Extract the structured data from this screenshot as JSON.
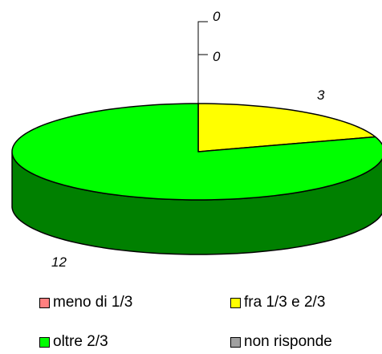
{
  "chart_data": {
    "type": "pie",
    "title": "",
    "three_d": true,
    "slices": [
      {
        "label": "meno di 1/3",
        "value": 0,
        "color": "#ff8080",
        "data_label": "0"
      },
      {
        "label": "fra 1/3 e 2/3",
        "value": 3,
        "color": "#ffff00",
        "data_label": "3"
      },
      {
        "label": "oltre 2/3",
        "value": 12,
        "color": "#00ff00",
        "data_label": "12"
      },
      {
        "label": "non risponde",
        "value": 0,
        "color": "#a0a0a0",
        "data_label": "0"
      }
    ],
    "legend_position": "bottom"
  }
}
